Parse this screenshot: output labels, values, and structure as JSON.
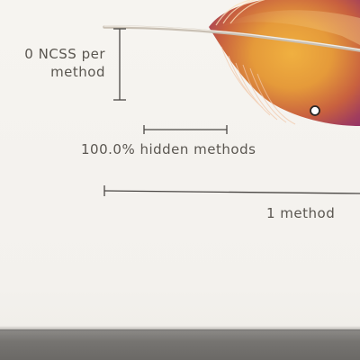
{
  "labels": {
    "ncss_line1": "0 NCSS per",
    "ncss_line2": "method",
    "hidden_methods": "100.0% hidden methods",
    "method_count": "1 method"
  },
  "colors": {
    "background": "#f4f2ee",
    "text": "#5a5650",
    "rule": "#4a4744",
    "feather_orange": "#e9a23a",
    "feather_magenta": "#8e2f6b",
    "bottom_strip": "#767471"
  },
  "legend": {
    "ncss_per_method": 0,
    "hidden_methods_percent": 100.0,
    "method_count": 1
  }
}
